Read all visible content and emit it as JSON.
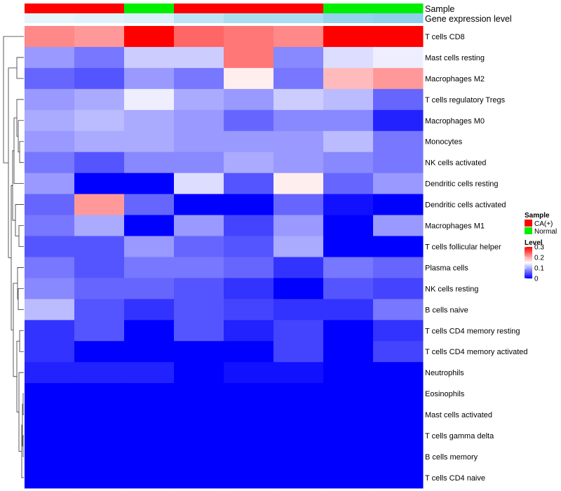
{
  "chart_data": {
    "type": "heatmap",
    "annotation_rows": {
      "sample_title": "Sample",
      "expression_title": "Gene expression level"
    },
    "columns": [
      {
        "sample": "CA(+)",
        "gene_expression_level": 0.2
      },
      {
        "sample": "CA(+)",
        "gene_expression_level": 0.25
      },
      {
        "sample": "Normal",
        "gene_expression_level": 0.3
      },
      {
        "sample": "CA(+)",
        "gene_expression_level": 0.55
      },
      {
        "sample": "CA(+)",
        "gene_expression_level": 0.7
      },
      {
        "sample": "CA(+)",
        "gene_expression_level": 0.7
      },
      {
        "sample": "Normal",
        "gene_expression_level": 0.9
      },
      {
        "sample": "Normal",
        "gene_expression_level": 0.95
      }
    ],
    "rows": [
      {
        "name": "T cells CD8",
        "values": [
          0.22,
          0.21,
          0.3,
          0.24,
          0.23,
          0.22,
          0.3,
          0.3
        ]
      },
      {
        "name": "Mast cells resting",
        "values": [
          0.09,
          0.07,
          0.12,
          0.12,
          0.23,
          0.08,
          0.13,
          0.14
        ]
      },
      {
        "name": "Macrophages M2",
        "values": [
          0.06,
          0.05,
          0.09,
          0.07,
          0.16,
          0.07,
          0.19,
          0.21
        ]
      },
      {
        "name": "T cells regulatory  Tregs",
        "values": [
          0.09,
          0.1,
          0.14,
          0.1,
          0.09,
          0.12,
          0.11,
          0.06
        ]
      },
      {
        "name": "Macrophages M0",
        "values": [
          0.1,
          0.11,
          0.1,
          0.09,
          0.06,
          0.08,
          0.08,
          0.02
        ]
      },
      {
        "name": "Monocytes",
        "values": [
          0.09,
          0.1,
          0.1,
          0.09,
          0.09,
          0.09,
          0.11,
          0.07
        ]
      },
      {
        "name": "NK cells activated",
        "values": [
          0.07,
          0.05,
          0.08,
          0.08,
          0.1,
          0.09,
          0.08,
          0.07
        ]
      },
      {
        "name": "Dendritic cells resting",
        "values": [
          0.09,
          0.0,
          0.0,
          0.13,
          0.05,
          0.16,
          0.06,
          0.09
        ]
      },
      {
        "name": "Dendritic cells activated",
        "values": [
          0.06,
          0.21,
          0.06,
          0.0,
          0.0,
          0.06,
          0.01,
          0.0
        ]
      },
      {
        "name": "Macrophages M1",
        "values": [
          0.07,
          0.1,
          0.0,
          0.09,
          0.04,
          0.09,
          0.0,
          0.09
        ]
      },
      {
        "name": "T cells follicular helper",
        "values": [
          0.05,
          0.05,
          0.09,
          0.06,
          0.05,
          0.1,
          0.0,
          0.0
        ]
      },
      {
        "name": "Plasma cells",
        "values": [
          0.07,
          0.05,
          0.07,
          0.07,
          0.06,
          0.03,
          0.07,
          0.06
        ]
      },
      {
        "name": "NK cells resting",
        "values": [
          0.08,
          0.06,
          0.06,
          0.05,
          0.03,
          0.0,
          0.05,
          0.04
        ]
      },
      {
        "name": "B cells naive",
        "values": [
          0.11,
          0.05,
          0.03,
          0.05,
          0.04,
          0.03,
          0.03,
          0.07
        ]
      },
      {
        "name": "T cells CD4 memory resting",
        "values": [
          0.03,
          0.05,
          0.0,
          0.05,
          0.02,
          0.04,
          0.0,
          0.03
        ]
      },
      {
        "name": "T cells CD4 memory activated",
        "values": [
          0.03,
          0.0,
          0.0,
          0.0,
          0.0,
          0.04,
          0.0,
          0.04
        ]
      },
      {
        "name": "Neutrophils",
        "values": [
          0.02,
          0.02,
          0.02,
          0.0,
          0.01,
          0.01,
          0.0,
          0.0
        ]
      },
      {
        "name": "Eosinophils",
        "values": [
          0.0,
          0.0,
          0.0,
          0.0,
          0.0,
          0.0,
          0.0,
          0.0
        ]
      },
      {
        "name": "Mast cells activated",
        "values": [
          0.0,
          0.0,
          0.0,
          0.0,
          0.0,
          0.0,
          0.0,
          0.0
        ]
      },
      {
        "name": "T cells gamma delta",
        "values": [
          0.0,
          0.0,
          0.0,
          0.0,
          0.0,
          0.0,
          0.0,
          0.0
        ]
      },
      {
        "name": "B cells memory",
        "values": [
          0.0,
          0.0,
          0.0,
          0.0,
          0.0,
          0.0,
          0.0,
          0.0
        ]
      },
      {
        "name": "T cells CD4 naive",
        "values": [
          0.0,
          0.0,
          0.0,
          0.0,
          0.0,
          0.0,
          0.0,
          0.0
        ]
      }
    ],
    "color_scale": {
      "min": 0,
      "mid": 0.15,
      "max": 0.3,
      "low_color": "#0000ff",
      "mid_color": "#ffffff",
      "high_color": "#ff0000"
    },
    "expression_colors": {
      "low": "#ffffff",
      "high": "#87ceeb"
    },
    "legend": {
      "placement": "right",
      "sample": {
        "title": "Sample",
        "entries": [
          {
            "label": "CA(+)",
            "color": "#ff0000"
          },
          {
            "label": "Normal",
            "color": "#00ee00"
          }
        ]
      },
      "level": {
        "title": "Level",
        "ticks": [
          {
            "value": 0.3,
            "label": "0.3"
          },
          {
            "value": 0.2,
            "label": "0.2"
          },
          {
            "value": 0.1,
            "label": "0.1"
          },
          {
            "value": 0,
            "label": "0"
          }
        ]
      }
    },
    "row_dendrogram": true,
    "column_dendrogram": false
  }
}
